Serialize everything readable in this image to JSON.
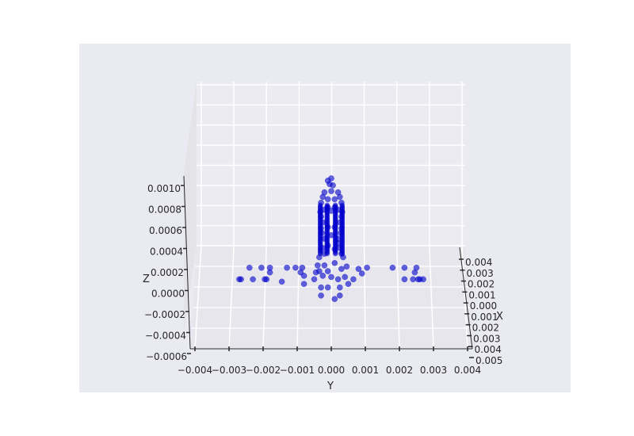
{
  "chart_data": {
    "type": "scatter",
    "projection": "3d",
    "title": "",
    "xlabel": "X",
    "ylabel": "Y",
    "zlabel": "Z",
    "x_ticks": [
      "0.004",
      "0.003",
      "0.002",
      "0.001",
      "0.000",
      "0.001",
      "0.002",
      "0.003",
      "0.004",
      "0.005"
    ],
    "y_ticks": [
      "−0.004",
      "−0.003",
      "−0.002",
      "−0.001",
      "0.000",
      "0.001",
      "0.002",
      "0.003",
      "0.004"
    ],
    "z_ticks": [
      "0.0010",
      "0.0008",
      "0.0006",
      "0.0004",
      "0.0002",
      "0.0000",
      "−0.0002",
      "−0.0004",
      "−0.0006"
    ],
    "ylim": [
      -0.004,
      0.004
    ],
    "zlim": [
      -0.0006,
      0.0011
    ],
    "grid": true,
    "background_color": "#eaeaf2",
    "point_color": "#0000cc",
    "series": [
      {
        "points": [
          {
            "y": -0.0027,
            "z": 0.00023
          },
          {
            "y": -0.00265,
            "z": 0.00023
          },
          {
            "y": -0.0024,
            "z": 0.00033
          },
          {
            "y": -0.0023,
            "z": 0.00023
          },
          {
            "y": -0.00205,
            "z": 0.00033
          },
          {
            "y": -0.00195,
            "z": 0.00023
          },
          {
            "y": -0.0019,
            "z": 0.00023
          },
          {
            "y": -0.0018,
            "z": 0.00029
          },
          {
            "y": -0.0018,
            "z": 0.00033
          },
          {
            "y": -0.00145,
            "z": 0.00021
          },
          {
            "y": -0.0013,
            "z": 0.00033
          },
          {
            "y": -0.00105,
            "z": 0.00033
          },
          {
            "y": -0.0009,
            "z": 0.00029
          },
          {
            "y": -0.00085,
            "z": 0.00033
          },
          {
            "y": -0.0008,
            "z": 0.00026
          },
          {
            "y": -0.0008,
            "z": 0.00019
          },
          {
            "y": -0.0005,
            "z": 0.00023
          },
          {
            "y": -0.00045,
            "z": 0.00029
          },
          {
            "y": -0.0004,
            "z": 0.00035
          },
          {
            "y": -0.00035,
            "z": 0.0003
          },
          {
            "y": -0.0003,
            "z": 0.00016
          },
          {
            "y": -0.00025,
            "z": 0.00026
          },
          {
            "y": -0.0002,
            "z": 0.00035
          },
          {
            "y": -0.0001,
            "z": 0.00016
          },
          {
            "y": 0.0,
            "z": 0.00025
          },
          {
            "y": 0.0002,
            "z": 0.00023
          },
          {
            "y": 0.00025,
            "z": 0.00016
          },
          {
            "y": 0.0003,
            "z": 0.00032
          },
          {
            "y": 0.0004,
            "z": 0.00025
          },
          {
            "y": 0.00045,
            "z": 0.00034
          },
          {
            "y": 0.0005,
            "z": 0.00019
          },
          {
            "y": 0.00065,
            "z": 0.00023
          },
          {
            "y": 0.0008,
            "z": 0.00032
          },
          {
            "y": 0.0009,
            "z": 0.00028
          },
          {
            "y": 0.00105,
            "z": 0.00033
          },
          {
            "y": 0.0018,
            "z": 0.00033
          },
          {
            "y": 0.00215,
            "z": 0.00033
          },
          {
            "y": 0.00215,
            "z": 0.00023
          },
          {
            "y": 0.0024,
            "z": 0.00023
          },
          {
            "y": 0.00245,
            "z": 0.00029
          },
          {
            "y": 0.0025,
            "z": 0.00033
          },
          {
            "y": 0.00255,
            "z": 0.00023
          },
          {
            "y": 0.0026,
            "z": 0.00023
          },
          {
            "y": 0.0027,
            "z": 0.00023
          },
          {
            "y": 0.0001,
            "z": 6e-05
          },
          {
            "y": 0.00025,
            "z": 9e-05
          },
          {
            "y": -0.0003,
            "z": 9e-05
          },
          {
            "y": -0.00035,
            "z": 0.00042
          },
          {
            "y": -0.0002,
            "z": 0.00045
          },
          {
            "y": -0.0001,
            "z": 0.00052
          },
          {
            "y": 0.0001,
            "z": 0.00049
          },
          {
            "y": 0.0002,
            "z": 0.00054
          },
          {
            "y": 0.0003,
            "z": 0.00045
          },
          {
            "y": 0.00035,
            "z": 0.00042
          },
          {
            "y": -0.0002,
            "z": 0.00058
          },
          {
            "y": 0.0,
            "z": 0.00061
          },
          {
            "y": 0.0002,
            "z": 0.00058
          },
          {
            "y": -0.0003,
            "z": 0.00067
          },
          {
            "y": 0.0003,
            "z": 0.00067
          },
          {
            "y": -0.00025,
            "z": 0.00072
          },
          {
            "y": 0.00025,
            "z": 0.00072
          },
          {
            "y": -0.0003,
            "z": 0.00077
          },
          {
            "y": 0.0003,
            "z": 0.00077
          },
          {
            "y": -0.0002,
            "z": 0.00083
          },
          {
            "y": -0.0001,
            "z": 0.00085
          },
          {
            "y": 0.0,
            "z": 0.00082
          },
          {
            "y": 0.0001,
            "z": 0.00085
          },
          {
            "y": 0.0002,
            "z": 0.00083
          },
          {
            "y": -0.0003,
            "z": 0.00089
          },
          {
            "y": 0.0003,
            "z": 0.00089
          },
          {
            "y": -0.00025,
            "z": 0.00094
          },
          {
            "y": -0.0001,
            "z": 0.00092
          },
          {
            "y": 0.0001,
            "z": 0.00092
          },
          {
            "y": 0.00025,
            "z": 0.00094
          },
          {
            "y": -0.0002,
            "z": 0.00098
          },
          {
            "y": 0.0,
            "z": 0.00099
          },
          {
            "y": 0.0002,
            "z": 0.00098
          },
          {
            "y": -5e-05,
            "z": 0.00105
          },
          {
            "y": 5e-05,
            "z": 0.00104
          },
          {
            "y": 0.0,
            "z": 0.0011
          },
          {
            "y": -0.0001,
            "z": 0.00108
          },
          {
            "y": -0.00028,
            "z": 0.00063
          },
          {
            "y": 0.00028,
            "z": 0.00063
          },
          {
            "y": -0.00032,
            "z": 0.00081
          },
          {
            "y": 0.00032,
            "z": 0.00081
          },
          {
            "y": -0.00025,
            "z": 0.0005
          },
          {
            "y": 0.00025,
            "z": 0.0005
          },
          {
            "y": -0.0001,
            "z": 0.00068
          },
          {
            "y": 0.0001,
            "z": 0.00068
          },
          {
            "y": -0.0001,
            "z": 0.0003
          },
          {
            "y": 0.0001,
            "z": 0.00037
          }
        ]
      }
    ]
  }
}
